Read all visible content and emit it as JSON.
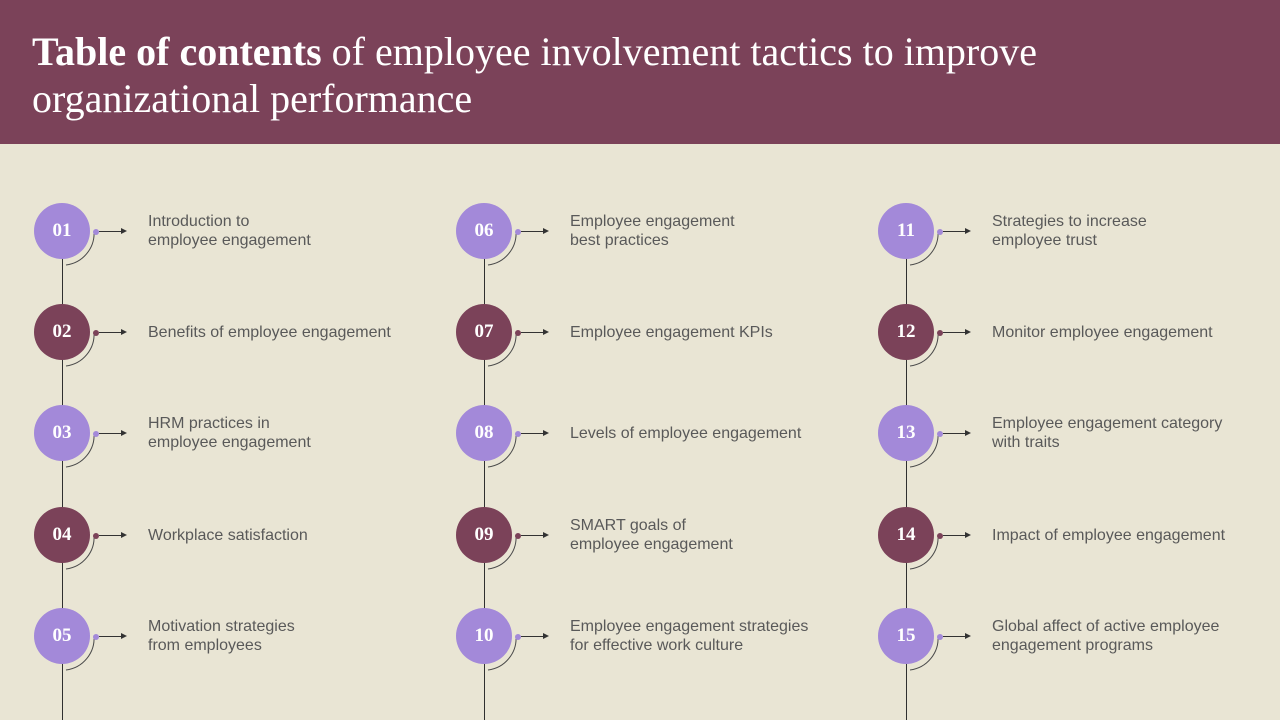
{
  "header": {
    "title_bold": "Table of contents",
    "title_rest": " of employee involvement tactics to improve organizational performance"
  },
  "colors": {
    "header_bg": "#7b4259",
    "page_bg": "#e9e5d4",
    "purple": "#a389d9",
    "maroon": "#7b4259"
  },
  "columns": [
    {
      "items": [
        {
          "number": "01",
          "label": "Introduction  to\nemployee engagement",
          "color": "purple"
        },
        {
          "number": "02",
          "label": "Benefits of employee engagement",
          "color": "maroon"
        },
        {
          "number": "03",
          "label": "HRM practices in\nemployee engagement",
          "color": "purple"
        },
        {
          "number": "04",
          "label": "Workplace satisfaction",
          "color": "maroon"
        },
        {
          "number": "05",
          "label": "Motivation strategies\nfrom employees",
          "color": "purple"
        }
      ]
    },
    {
      "items": [
        {
          "number": "06",
          "label": "Employee engagement\nbest practices",
          "color": "purple"
        },
        {
          "number": "07",
          "label": "Employee engagement KPIs",
          "color": "maroon"
        },
        {
          "number": "08",
          "label": "Levels of employee engagement",
          "color": "purple"
        },
        {
          "number": "09",
          "label": "SMART goals of\nemployee engagement",
          "color": "maroon"
        },
        {
          "number": "10",
          "label": "Employee engagement strategies\nfor effective work culture",
          "color": "purple"
        }
      ]
    },
    {
      "items": [
        {
          "number": "11",
          "label": "Strategies to increase\nemployee trust",
          "color": "purple"
        },
        {
          "number": "12",
          "label": "Monitor employee engagement",
          "color": "maroon"
        },
        {
          "number": "13",
          "label": "Employee engagement category\nwith traits",
          "color": "purple"
        },
        {
          "number": "14",
          "label": "Impact of employee engagement",
          "color": "maroon"
        },
        {
          "number": "15",
          "label": "Global affect of active employee\nengagement programs",
          "color": "purple"
        }
      ]
    }
  ]
}
